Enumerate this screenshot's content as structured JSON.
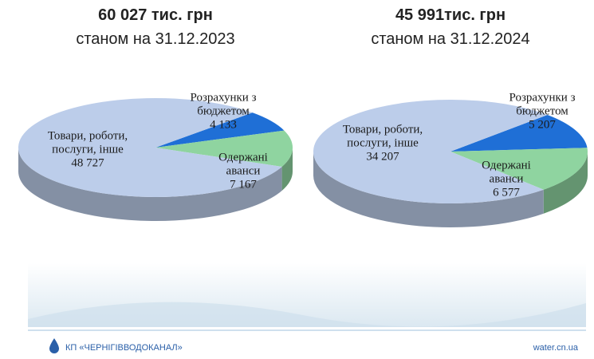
{
  "chart_data": [
    {
      "type": "pie",
      "title": "60 027 тис. грн",
      "subtitle": "станом на 31.12.2023",
      "categories": [
        "Розрахунки з бюджетом",
        "Одержані аванси",
        "Товари, роботи, послуги, інше"
      ],
      "values": [
        4133,
        7167,
        48727
      ],
      "value_labels": [
        "4 133",
        "7 167",
        "48 727"
      ],
      "colors": [
        "#1f6fd6",
        "#8fd4a0",
        "#bccdea"
      ]
    },
    {
      "type": "pie",
      "title": "45 991тис. грн",
      "subtitle": "станом на 31.12.2024",
      "categories": [
        "Розрахунки з бюджетом",
        "Одержані аванси",
        "Товари, роботи, послуги, інше"
      ],
      "values": [
        5207,
        6577,
        34207
      ],
      "value_labels": [
        "5 207",
        "6 577",
        "34 207"
      ],
      "colors": [
        "#1f6fd6",
        "#8fd4a0",
        "#bccdea"
      ]
    }
  ],
  "footer": {
    "organization": "КП «ЧЕРНІГІВВОДОКАНАЛ»",
    "website": "water.cn.ua"
  }
}
